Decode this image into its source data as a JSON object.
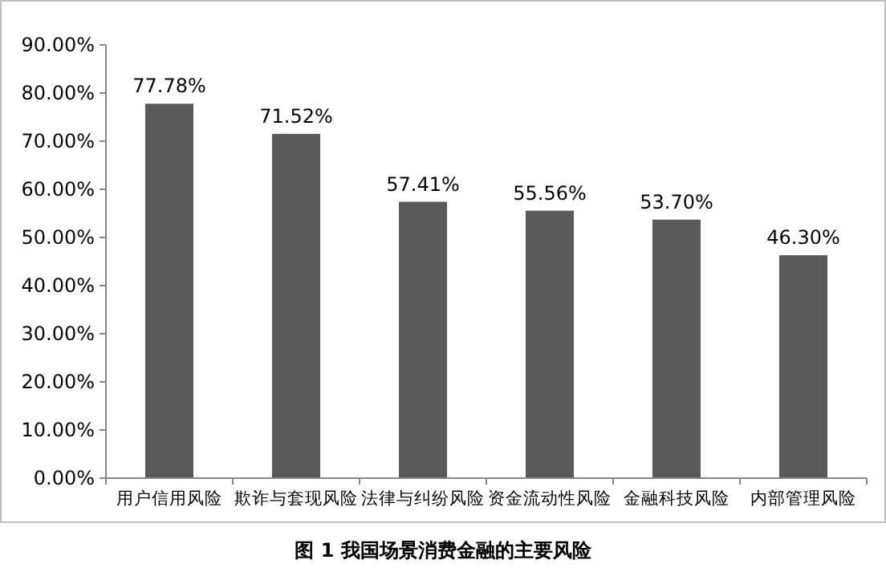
{
  "chart_data": {
    "type": "bar",
    "title": "图 1  我国场景消费金融的主要风险",
    "categories": [
      "用户信用风险",
      "欺诈与套现风险",
      "法律与纠纷风险",
      "资金流动性风险",
      "金融科技风险",
      "内部管理风险"
    ],
    "values": [
      77.78,
      71.52,
      57.41,
      55.56,
      53.7,
      46.3
    ],
    "value_labels": [
      "77.78%",
      "71.52%",
      "57.41%",
      "55.56%",
      "53.70%",
      "46.30%"
    ],
    "color": "#595959",
    "ylim": [
      0,
      90
    ],
    "yticks": [
      {
        "value": 0,
        "label": "0.00%"
      },
      {
        "value": 10,
        "label": "10.00%"
      },
      {
        "value": 20,
        "label": "20.00%"
      },
      {
        "value": 30,
        "label": "30.00%"
      },
      {
        "value": 40,
        "label": "40.00%"
      },
      {
        "value": 50,
        "label": "50.00%"
      },
      {
        "value": 60,
        "label": "60.00%"
      },
      {
        "value": 70,
        "label": "70.00%"
      },
      {
        "value": 80,
        "label": "80.00%"
      },
      {
        "value": 90,
        "label": "90.00%"
      }
    ],
    "grid": false
  }
}
